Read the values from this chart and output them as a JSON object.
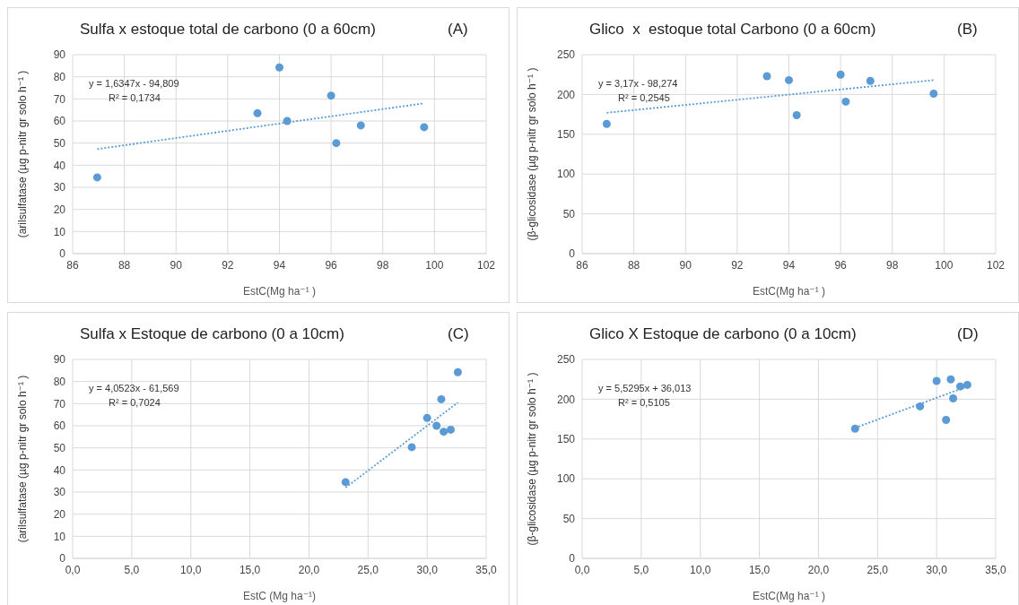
{
  "chart_data": [
    {
      "type": "scatter",
      "title": "Sulfa x estoque total de carbono (0 a 60cm)",
      "annotations": [
        "(A)",
        "y = 1,6347x - 94,809",
        "R² = 0,1734"
      ],
      "xlabel": "EstC(Mg ha⁻¹ )",
      "ylabel": "(arilsulfatase (µg p-nitr gr solo h⁻¹ )",
      "xlim": [
        86,
        102
      ],
      "xticks": [
        86,
        88,
        90,
        92,
        94,
        96,
        98,
        100,
        102
      ],
      "ylim": [
        0,
        90
      ],
      "yticks": [
        0,
        10,
        20,
        30,
        40,
        50,
        60,
        70,
        80,
        90
      ],
      "grid": true,
      "series": [
        {
          "color": "#5b9bd5",
          "marker": "circle",
          "x": [
            86.95,
            93.15,
            94.0,
            94.3,
            96.0,
            96.2,
            97.15,
            99.6
          ],
          "values": [
            34.5,
            63.5,
            84.2,
            60,
            71.5,
            50,
            58,
            57.2
          ]
        },
        {
          "type": "line",
          "color": "#5b9bd5",
          "line_style": "dotted",
          "marker": "none",
          "x": [
            86.95,
            99.6
          ],
          "values": [
            47.3,
            68.0
          ]
        }
      ]
    },
    {
      "type": "scatter",
      "title": "Glico  x  estoque total Carbono (0 a 60cm)",
      "annotations": [
        "(B)",
        "y = 3,17x - 98,274",
        "R² = 0,2545"
      ],
      "xlabel": "EstC(Mg ha⁻¹ )",
      "ylabel": "(β-glicosidase (µg p-nitr gr solo h⁻¹ )",
      "xlim": [
        86,
        102
      ],
      "xticks": [
        86,
        88,
        90,
        92,
        94,
        96,
        98,
        100,
        102
      ],
      "ylim": [
        0,
        250
      ],
      "yticks": [
        0,
        50,
        100,
        150,
        200,
        250
      ],
      "grid": true,
      "series": [
        {
          "color": "#5b9bd5",
          "marker": "circle",
          "x": [
            86.95,
            93.15,
            94.0,
            94.3,
            96.0,
            96.2,
            97.15,
            99.6
          ],
          "values": [
            163,
            223,
            218,
            174,
            225,
            191,
            217,
            201
          ]
        },
        {
          "type": "line",
          "color": "#5b9bd5",
          "line_style": "dotted",
          "marker": "none",
          "x": [
            86.95,
            99.6
          ],
          "values": [
            177,
            218
          ]
        }
      ]
    },
    {
      "type": "scatter",
      "title": "Sulfa x Estoque de carbono (0 a 10cm)",
      "annotations": [
        "(C)",
        "y = 4,0523x - 61,569",
        "R² = 0,7024"
      ],
      "xlabel": "EstC (Mg ha⁻¹)",
      "ylabel": "(arilsulfatase (µg p-nitr gr solo h⁻¹ )",
      "xlim": [
        0,
        35
      ],
      "xticks": [
        {
          "value": 0,
          "label": "0,0"
        },
        {
          "value": 5,
          "label": "5,0"
        },
        {
          "value": 10,
          "label": "10,0"
        },
        {
          "value": 15,
          "label": "15,0"
        },
        {
          "value": 20,
          "label": "20,0"
        },
        {
          "value": 25,
          "label": "25,0"
        },
        {
          "value": 30,
          "label": "30,0"
        },
        {
          "value": 35,
          "label": "35,0"
        }
      ],
      "ylim": [
        0,
        90
      ],
      "yticks": [
        0,
        10,
        20,
        30,
        40,
        50,
        60,
        70,
        80,
        90
      ],
      "grid": true,
      "series": [
        {
          "color": "#5b9bd5",
          "marker": "circle",
          "x": [
            23.1,
            28.7,
            30.0,
            30.8,
            31.2,
            31.4,
            32.0,
            32.6
          ],
          "values": [
            34.5,
            50.3,
            63.5,
            60,
            72,
            57.3,
            58.2,
            84.2
          ]
        },
        {
          "type": "line",
          "color": "#5b9bd5",
          "line_style": "dotted",
          "marker": "none",
          "x": [
            23.1,
            32.6
          ],
          "values": [
            32.0,
            70.5
          ]
        }
      ]
    },
    {
      "type": "scatter",
      "title": "Glico X Estoque de carbono (0 a 10cm)",
      "annotations": [
        "(D)",
        "y = 5,5295x + 36,013",
        "R² = 0,5105"
      ],
      "xlabel": "EstC(Mg ha⁻¹ )",
      "ylabel": "(β-glicosidase (µg p-nitr gr solo h⁻¹ )",
      "xlim": [
        0,
        35
      ],
      "xticks": [
        {
          "value": 0,
          "label": "0,0"
        },
        {
          "value": 5,
          "label": "5,0"
        },
        {
          "value": 10,
          "label": "10,0"
        },
        {
          "value": 15,
          "label": "15,0"
        },
        {
          "value": 20,
          "label": "20,0"
        },
        {
          "value": 25,
          "label": "25,0"
        },
        {
          "value": 30,
          "label": "30,0"
        },
        {
          "value": 35,
          "label": "35,0"
        }
      ],
      "ylim": [
        0,
        250
      ],
      "yticks": [
        0,
        50,
        100,
        150,
        200,
        250
      ],
      "grid": true,
      "series": [
        {
          "color": "#5b9bd5",
          "marker": "circle",
          "x": [
            23.1,
            28.6,
            30.0,
            30.8,
            31.2,
            31.4,
            32.0,
            32.6
          ],
          "values": [
            163,
            191,
            223,
            174,
            225,
            201,
            216,
            218
          ]
        },
        {
          "type": "line",
          "color": "#5b9bd5",
          "line_style": "dotted",
          "marker": "none",
          "x": [
            23.1,
            32.6
          ],
          "values": [
            164,
            216
          ]
        }
      ]
    }
  ]
}
